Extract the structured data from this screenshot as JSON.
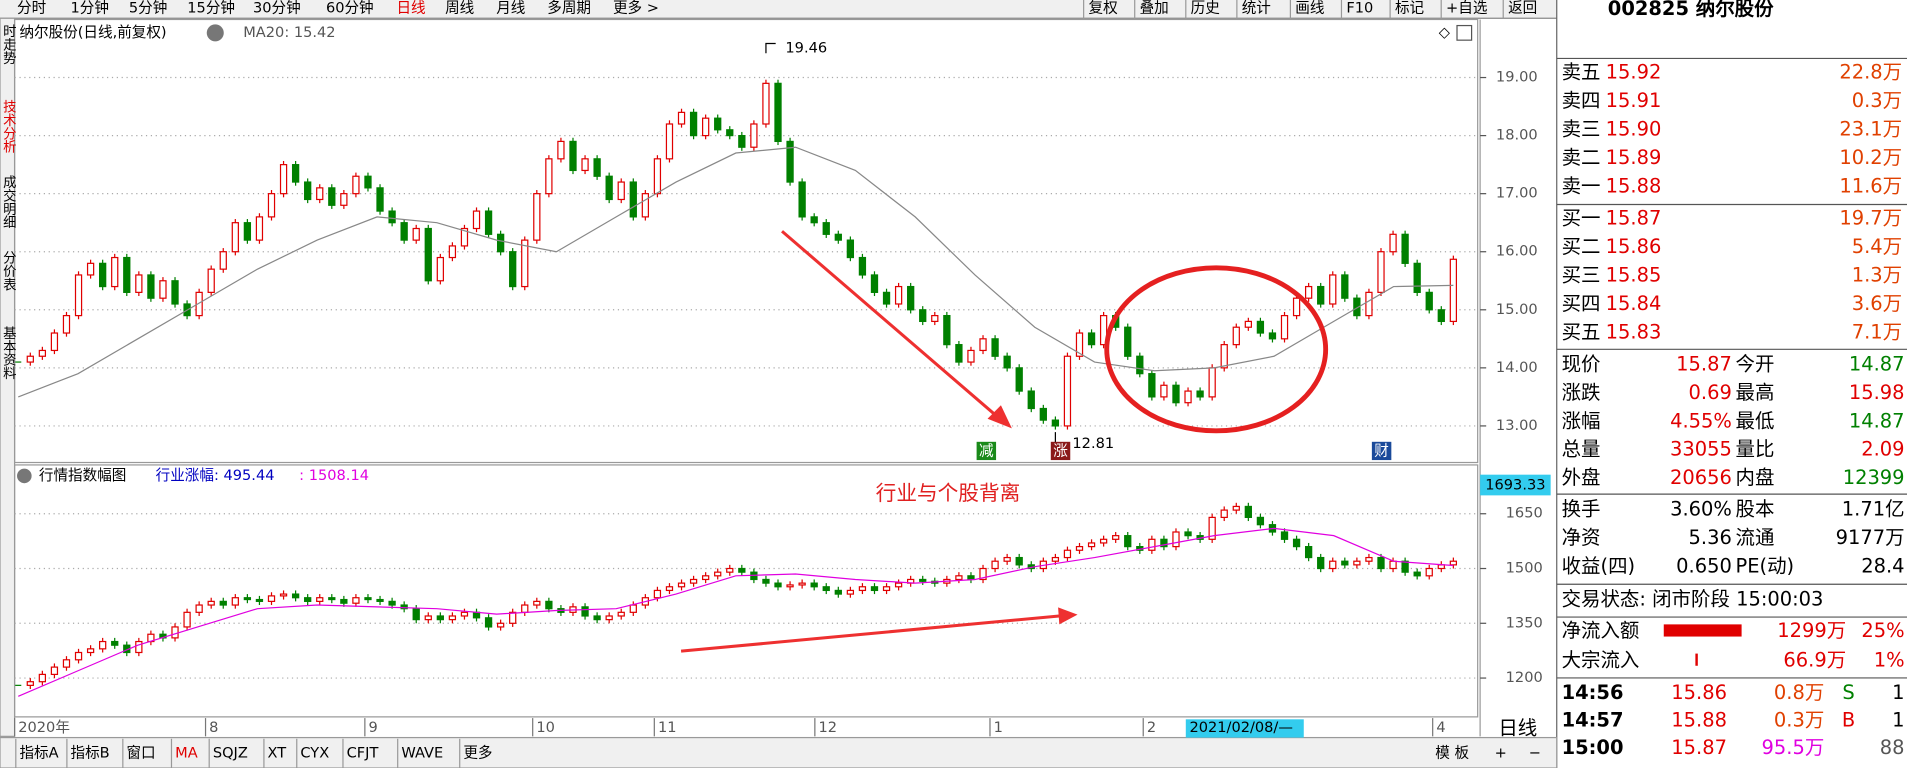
{
  "toolbar": {
    "periods": [
      "分时",
      "1分钟",
      "5分钟",
      "15分钟",
      "30分钟",
      "60分钟",
      "日线",
      "周线",
      "月线",
      "多周期",
      "更多 >"
    ],
    "actions": [
      "复权",
      "叠加",
      "历史",
      "统计",
      "画线",
      "F10",
      "标记",
      "+自选",
      "返回"
    ]
  },
  "side_tabs": [
    "时走势",
    "技术分析",
    "成交明细",
    "分价表",
    "基本资料"
  ],
  "chart": {
    "title": "纳尔股份(日线,前复权)",
    "ma_label": "MA20: 15.42",
    "ylim": [
      12.37,
      20.0
    ],
    "yticks": [
      {
        "value": 13,
        "label": "13.00"
      },
      {
        "value": 14,
        "label": "14.00"
      },
      {
        "value": 15,
        "label": "15.00"
      },
      {
        "value": 16,
        "label": "16.00"
      },
      {
        "value": 17,
        "label": "17.00"
      },
      {
        "value": 18,
        "label": "18.00"
      },
      {
        "value": 19,
        "label": "19.00"
      }
    ],
    "closes": [
      14.1,
      14.2,
      14.3,
      14.6,
      14.9,
      15.6,
      15.8,
      15.4,
      15.9,
      15.3,
      15.6,
      15.2,
      15.5,
      15.1,
      14.9,
      15.3,
      15.7,
      16.0,
      16.5,
      16.2,
      16.6,
      17.0,
      17.5,
      17.2,
      16.9,
      17.1,
      16.8,
      17.0,
      17.3,
      17.1,
      16.7,
      16.5,
      16.2,
      16.4,
      15.5,
      15.9,
      16.1,
      16.4,
      16.7,
      16.3,
      16.0,
      15.4,
      16.2,
      17.0,
      17.6,
      17.9,
      17.4,
      17.6,
      17.3,
      16.9,
      17.2,
      16.6,
      17.0,
      17.6,
      18.2,
      18.4,
      18.0,
      18.3,
      18.1,
      18.0,
      17.8,
      18.2,
      18.9,
      17.9,
      17.2,
      16.6,
      16.5,
      16.3,
      16.2,
      15.9,
      15.6,
      15.3,
      15.1,
      15.4,
      15.0,
      14.8,
      14.9,
      14.4,
      14.1,
      14.3,
      14.5,
      14.2,
      14.0,
      13.6,
      13.3,
      13.1,
      13.0,
      14.2,
      14.6,
      14.4,
      14.9,
      14.7,
      14.2,
      13.9,
      13.5,
      13.7,
      13.4,
      13.6,
      13.5,
      14.0,
      14.4,
      14.7,
      14.8,
      14.6,
      14.5,
      14.9,
      15.2,
      15.4,
      15.1,
      15.6,
      15.2,
      14.9,
      15.3,
      16.0,
      16.3,
      15.8,
      15.3,
      15.0,
      14.8,
      15.87
    ],
    "ma20": [
      13.5,
      13.9,
      14.5,
      15.1,
      15.7,
      16.2,
      16.6,
      16.5,
      16.2,
      16.0,
      16.6,
      17.2,
      17.7,
      17.8,
      17.4,
      16.6,
      15.6,
      14.7,
      14.1,
      13.95,
      14.0,
      14.2,
      14.8,
      15.4,
      15.42
    ],
    "high_note": "19.46",
    "low_note": "12.81",
    "badges": [
      "减",
      "涨",
      "财"
    ]
  },
  "index_panel": {
    "title": "行情指数幅图",
    "value_a": "行业涨幅: 495.44",
    "value_b": ": 1508.14",
    "annotation": "行业与个股背离",
    "cursor_value": "1693.33",
    "ylim": [
      1097,
      1777
    ],
    "yticks": [
      1200,
      1350,
      1500,
      1650
    ],
    "closes": [
      1180,
      1190,
      1210,
      1230,
      1250,
      1270,
      1280,
      1300,
      1290,
      1270,
      1300,
      1320,
      1310,
      1340,
      1380,
      1400,
      1410,
      1400,
      1420,
      1415,
      1410,
      1425,
      1430,
      1420,
      1410,
      1420,
      1415,
      1405,
      1420,
      1415,
      1410,
      1400,
      1390,
      1360,
      1370,
      1360,
      1370,
      1380,
      1365,
      1340,
      1350,
      1380,
      1400,
      1410,
      1390,
      1380,
      1395,
      1370,
      1360,
      1370,
      1380,
      1400,
      1420,
      1440,
      1450,
      1460,
      1470,
      1480,
      1490,
      1500,
      1490,
      1470,
      1460,
      1450,
      1455,
      1460,
      1450,
      1440,
      1430,
      1440,
      1450,
      1440,
      1450,
      1460,
      1470,
      1465,
      1460,
      1470,
      1480,
      1470,
      1500,
      1520,
      1530,
      1510,
      1500,
      1520,
      1530,
      1550,
      1560,
      1570,
      1580,
      1590,
      1560,
      1550,
      1580,
      1560,
      1600,
      1590,
      1580,
      1640,
      1660,
      1670,
      1640,
      1620,
      1600,
      1580,
      1560,
      1530,
      1500,
      1520,
      1510,
      1520,
      1530,
      1500,
      1520,
      1490,
      1480,
      1500,
      1510,
      1520
    ],
    "ma": [
      1150,
      1220,
      1290,
      1340,
      1390,
      1400,
      1395,
      1390,
      1375,
      1385,
      1390,
      1430,
      1480,
      1485,
      1470,
      1460,
      1470,
      1505,
      1530,
      1560,
      1590,
      1610,
      1590,
      1520,
      1508.14
    ]
  },
  "x_axis": {
    "labels": [
      "2020年",
      "8",
      "9",
      "10",
      "11",
      "12",
      "1",
      "2",
      "4"
    ],
    "cursor_date": "2021/02/08/—",
    "period": "日线"
  },
  "bottom_tabs": [
    "指标A",
    "指标B",
    "窗口",
    "MA",
    "SQJZ",
    "XT",
    "CYX",
    "CFJT",
    "WAVE",
    "更多"
  ],
  "template": "模 板",
  "plus": "+",
  "minus": "−",
  "quote": {
    "code": "002825 纳尔股份",
    "asks": [
      [
        "卖五",
        "15.92",
        "22.8万"
      ],
      [
        "卖四",
        "15.91",
        "0.3万"
      ],
      [
        "卖三",
        "15.90",
        "23.1万"
      ],
      [
        "卖二",
        "15.89",
        "10.2万"
      ],
      [
        "卖一",
        "15.88",
        "11.6万"
      ]
    ],
    "bids": [
      [
        "买一",
        "15.87",
        "19.7万"
      ],
      [
        "买二",
        "15.86",
        "5.4万"
      ],
      [
        "买三",
        "15.85",
        "1.3万"
      ],
      [
        "买四",
        "15.84",
        "3.6万"
      ],
      [
        "买五",
        "15.83",
        "7.1万"
      ]
    ],
    "stats": [
      [
        "现价",
        "15.87",
        "今开",
        "14.87"
      ],
      [
        "涨跌",
        "0.69",
        "最高",
        "15.98"
      ],
      [
        "涨幅",
        "4.55%",
        "最低",
        "14.87"
      ],
      [
        "总量",
        "33055",
        "量比",
        "2.09"
      ],
      [
        "外盘",
        "20656",
        "内盘",
        "12399"
      ]
    ],
    "turnover": [
      [
        "换手",
        "3.60%",
        "股本",
        "1.71亿"
      ],
      [
        "净资",
        "5.36",
        "流通",
        "9177万"
      ],
      [
        "收益(四)",
        "0.650",
        "PE(动)",
        "28.4"
      ]
    ],
    "status": "交易状态: 闭市阶段 15:00:03",
    "flows": [
      [
        "净流入额",
        "1299万",
        "25%"
      ],
      [
        "大宗流入",
        "66.9万",
        "1%"
      ]
    ],
    "ticks": [
      [
        "14:56",
        "15.86",
        "0.8万",
        "S",
        "1"
      ],
      [
        "14:57",
        "15.88",
        "0.3万",
        "B",
        "1"
      ],
      [
        "15:00",
        "15.87",
        "95.5万",
        "88"
      ]
    ]
  }
}
